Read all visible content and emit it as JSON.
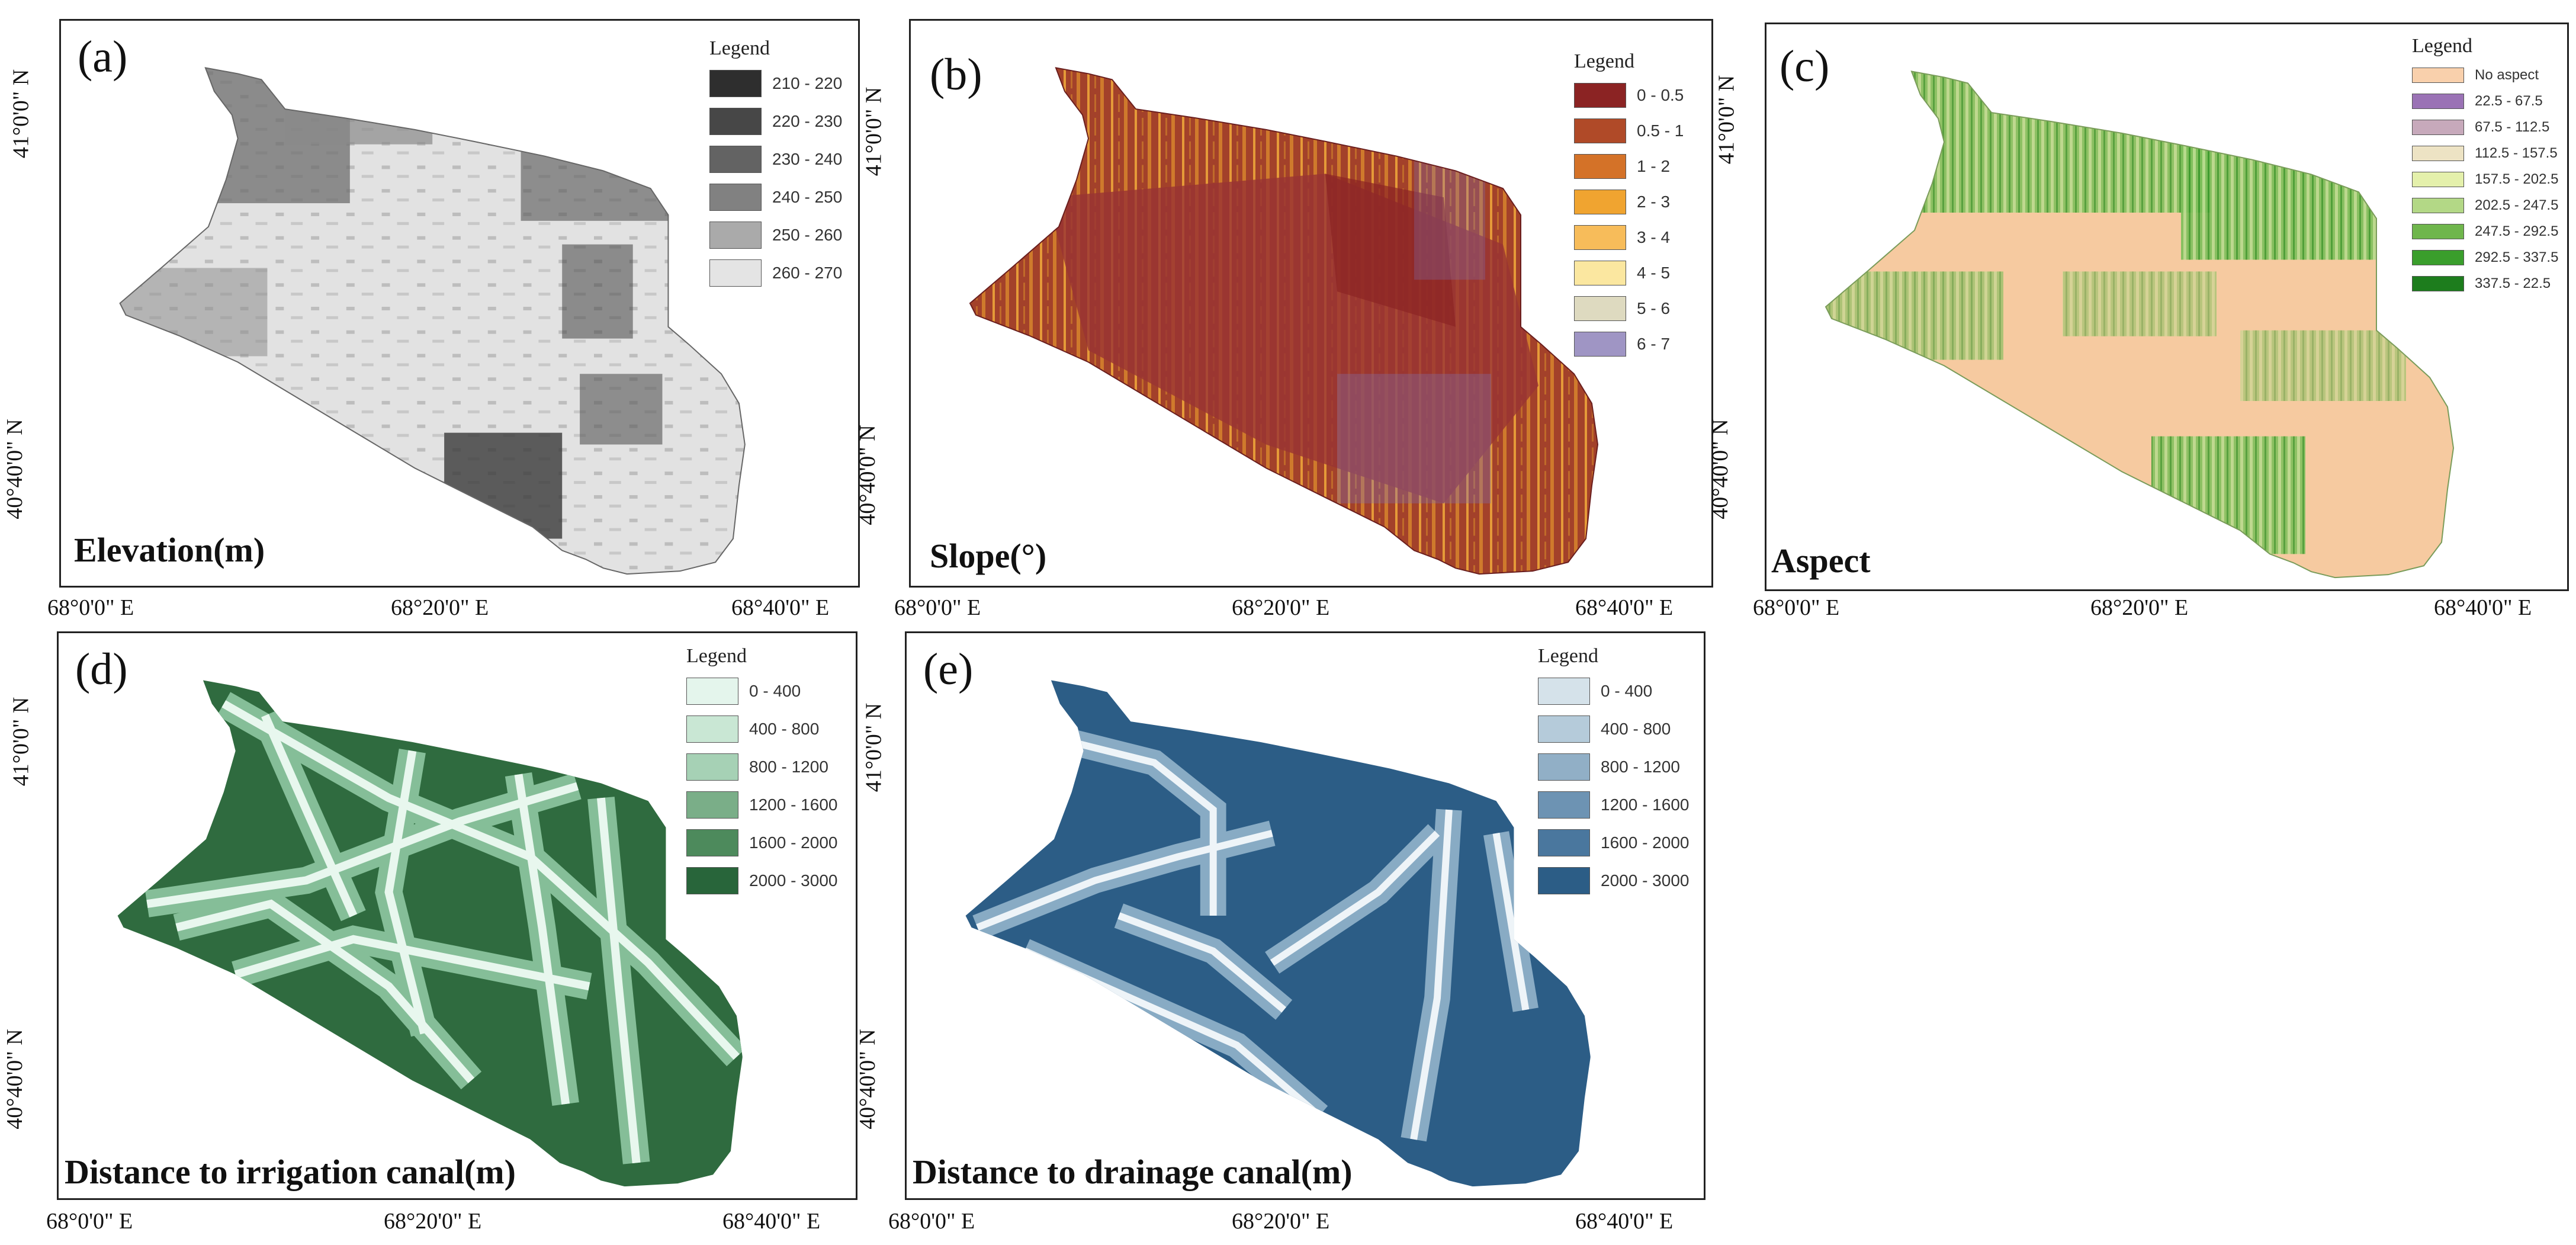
{
  "panels": [
    {
      "id": "a",
      "label": "(a)",
      "title": "Elevation(m)",
      "x_ticks": [
        "68°0'0\" E",
        "68°20'0\" E",
        "68°40'0\" E"
      ],
      "y_ticks": [
        "41°0'0\" N",
        "40°40'0\" N"
      ],
      "legend": {
        "title": "Legend",
        "items": [
          {
            "label": "210 - 220",
            "color": "#2e2e2e"
          },
          {
            "label": "220 - 230",
            "color": "#474747"
          },
          {
            "label": "230 - 240",
            "color": "#636363"
          },
          {
            "label": "240 - 250",
            "color": "#818181"
          },
          {
            "label": "250 - 260",
            "color": "#aaaaaa"
          },
          {
            "label": "260 - 270",
            "color": "#e4e4e4"
          }
        ]
      }
    },
    {
      "id": "b",
      "label": "(b)",
      "title": "Slope(°)",
      "x_ticks": [
        "68°0'0\" E",
        "68°20'0\" E",
        "68°40'0\" E"
      ],
      "y_ticks": [
        "41°0'0\" N",
        "40°40'0\" N"
      ],
      "legend": {
        "title": "Legend",
        "items": [
          {
            "label": "0 - 0.5",
            "color": "#8b2323"
          },
          {
            "label": "0.5 - 1",
            "color": "#b04a28"
          },
          {
            "label": "1 - 2",
            "color": "#d47228"
          },
          {
            "label": "2 - 3",
            "color": "#f0a430"
          },
          {
            "label": "3 - 4",
            "color": "#f7bc5a"
          },
          {
            "label": "4 - 5",
            "color": "#fbe7a0"
          },
          {
            "label": "5 - 6",
            "color": "#dedac0"
          },
          {
            "label": "6 - 7",
            "color": "#9f95c4"
          }
        ]
      }
    },
    {
      "id": "c",
      "label": "(c)",
      "title": "Aspect",
      "x_ticks": [
        "68°0'0\" E",
        "68°20'0\" E",
        "68°40'0\" E"
      ],
      "y_ticks": [
        "41°0'0\" N",
        "40°40'0\" N"
      ],
      "legend": {
        "title": "Legend",
        "items": [
          {
            "label": "No aspect",
            "color": "#f9d0ac"
          },
          {
            "label": "22.5 - 67.5",
            "color": "#9a72b5"
          },
          {
            "label": "67.5 - 112.5",
            "color": "#c7a9bb"
          },
          {
            "label": "112.5 - 157.5",
            "color": "#ede3c4"
          },
          {
            "label": "157.5 - 202.5",
            "color": "#e4f0ab"
          },
          {
            "label": "202.5 - 247.5",
            "color": "#b3d886"
          },
          {
            "label": "247.5 - 292.5",
            "color": "#6fb64c"
          },
          {
            "label": "292.5 - 337.5",
            "color": "#3a9e2c"
          },
          {
            "label": "337.5 - 22.5",
            "color": "#1d7d1d"
          }
        ]
      }
    },
    {
      "id": "d",
      "label": "(d)",
      "title": "Distance to irrigation canal(m)",
      "x_ticks": [
        "68°0'0\" E",
        "68°20'0\" E",
        "68°40'0\" E"
      ],
      "y_ticks": [
        "41°0'0\" N",
        "40°40'0\" N"
      ],
      "legend": {
        "title": "Legend",
        "items": [
          {
            "label": "0 - 400",
            "color": "#e4f5ec"
          },
          {
            "label": "400 - 800",
            "color": "#c9e7d4"
          },
          {
            "label": "800 - 1200",
            "color": "#a6d1b5"
          },
          {
            "label": "1200 - 1600",
            "color": "#7aae88"
          },
          {
            "label": "1600 - 2000",
            "color": "#4d8a5c"
          },
          {
            "label": "2000 - 3000",
            "color": "#28653a"
          }
        ]
      }
    },
    {
      "id": "e",
      "label": "(e)",
      "title": "Distance to drainage canal(m)",
      "x_ticks": [
        "68°0'0\" E",
        "68°20'0\" E",
        "68°40'0\" E"
      ],
      "y_ticks": [
        "41°0'0\" N",
        "40°40'0\" N"
      ],
      "legend": {
        "title": "Legend",
        "items": [
          {
            "label": "0 - 400",
            "color": "#d5e2ea"
          },
          {
            "label": "400 - 800",
            "color": "#b5cbda"
          },
          {
            "label": "800 - 1200",
            "color": "#91afc6"
          },
          {
            "label": "1200 - 1600",
            "color": "#6d93b3"
          },
          {
            "label": "1600 - 2000",
            "color": "#4a779e"
          },
          {
            "label": "2000 - 3000",
            "color": "#2c5d86"
          }
        ]
      }
    }
  ]
}
